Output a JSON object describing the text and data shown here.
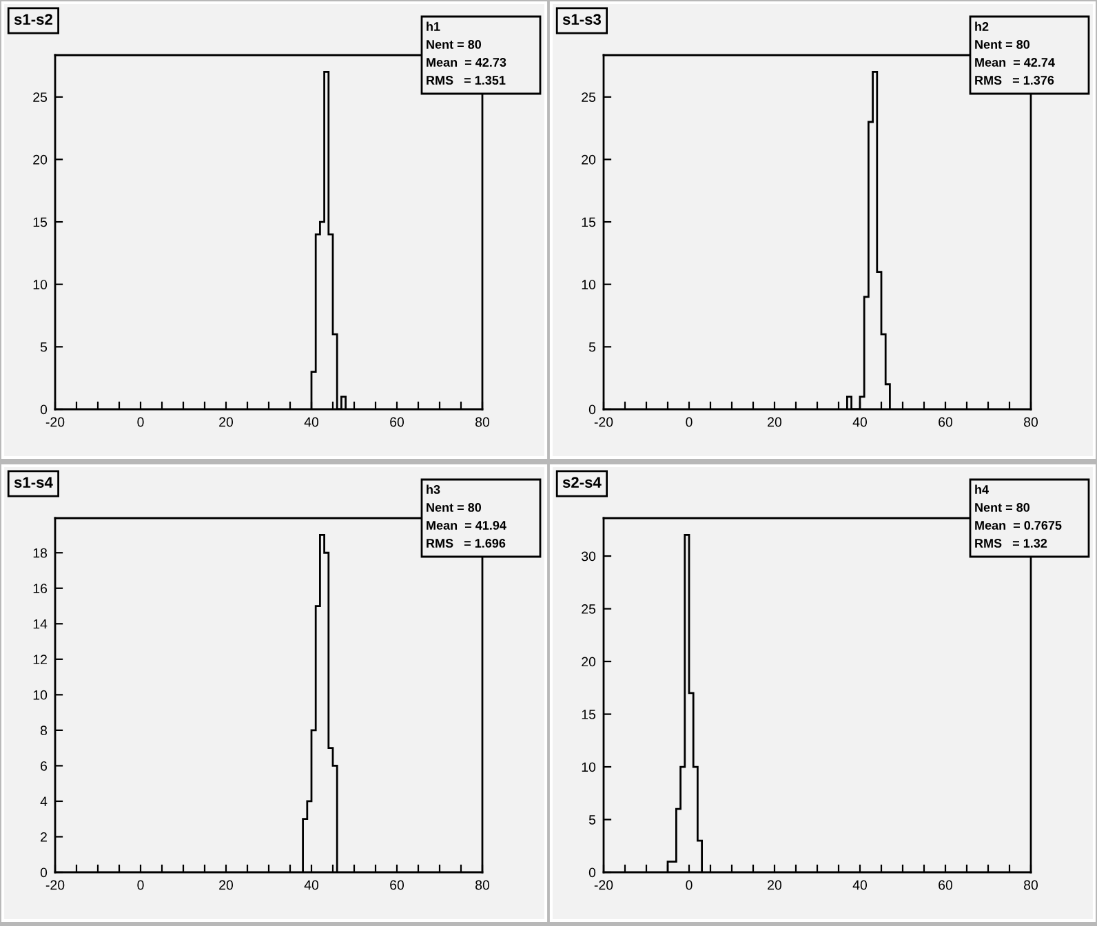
{
  "chart_data": [
    {
      "type": "histogram",
      "title": "s1-s2",
      "bins": [
        40,
        41,
        42,
        43,
        44,
        45,
        46,
        47,
        48
      ],
      "values": [
        3,
        14,
        15,
        27,
        14,
        6,
        0,
        1
      ],
      "color": "#000000",
      "xlim": [
        -20,
        80
      ],
      "ylim": [
        0,
        28.35
      ],
      "xticks": [
        -20,
        {
          "value": -15,
          "label": null
        },
        {
          "value": -10,
          "label": null
        },
        {
          "value": -5,
          "label": null
        },
        0,
        {
          "value": 5,
          "label": null
        },
        {
          "value": 10,
          "label": null
        },
        {
          "value": 15,
          "label": null
        },
        20,
        {
          "value": 25,
          "label": null
        },
        {
          "value": 30,
          "label": null
        },
        {
          "value": 35,
          "label": null
        },
        40,
        {
          "value": 45,
          "label": null
        },
        {
          "value": 50,
          "label": null
        },
        {
          "value": 55,
          "label": null
        },
        60,
        {
          "value": 65,
          "label": null
        },
        {
          "value": 70,
          "label": null
        },
        {
          "value": 75,
          "label": null
        },
        80
      ],
      "yticks": [
        0,
        5,
        10,
        15,
        20,
        25
      ],
      "grid": false,
      "legend": false,
      "annotations": [
        "h1",
        "Nent = 80",
        "Mean  = 42.73",
        "RMS   = 1.351"
      ]
    },
    {
      "type": "histogram",
      "title": "s1-s3",
      "bins": [
        37,
        38,
        39,
        40,
        41,
        42,
        43,
        44,
        45,
        46,
        47
      ],
      "values": [
        1,
        0,
        0,
        1,
        9,
        23,
        27,
        11,
        6,
        2
      ],
      "color": "#000000",
      "xlim": [
        -20,
        80
      ],
      "ylim": [
        0,
        28.35
      ],
      "xticks": [
        -20,
        {
          "value": -15,
          "label": null
        },
        {
          "value": -10,
          "label": null
        },
        {
          "value": -5,
          "label": null
        },
        0,
        {
          "value": 5,
          "label": null
        },
        {
          "value": 10,
          "label": null
        },
        {
          "value": 15,
          "label": null
        },
        20,
        {
          "value": 25,
          "label": null
        },
        {
          "value": 30,
          "label": null
        },
        {
          "value": 35,
          "label": null
        },
        40,
        {
          "value": 45,
          "label": null
        },
        {
          "value": 50,
          "label": null
        },
        {
          "value": 55,
          "label": null
        },
        60,
        {
          "value": 65,
          "label": null
        },
        {
          "value": 70,
          "label": null
        },
        {
          "value": 75,
          "label": null
        },
        80
      ],
      "yticks": [
        0,
        5,
        10,
        15,
        20,
        25
      ],
      "grid": false,
      "legend": false,
      "annotations": [
        "h2",
        "Nent = 80",
        "Mean  = 42.74",
        "RMS   = 1.376"
      ]
    },
    {
      "type": "histogram",
      "title": "s1-s4",
      "bins": [
        38,
        39,
        40,
        41,
        42,
        43,
        44,
        45,
        46
      ],
      "values": [
        3,
        4,
        8,
        15,
        19,
        18,
        7,
        6
      ],
      "color": "#000000",
      "xlim": [
        -20,
        80
      ],
      "ylim": [
        0,
        19.95
      ],
      "xticks": [
        -20,
        {
          "value": -15,
          "label": null
        },
        {
          "value": -10,
          "label": null
        },
        {
          "value": -5,
          "label": null
        },
        0,
        {
          "value": 5,
          "label": null
        },
        {
          "value": 10,
          "label": null
        },
        {
          "value": 15,
          "label": null
        },
        20,
        {
          "value": 25,
          "label": null
        },
        {
          "value": 30,
          "label": null
        },
        {
          "value": 35,
          "label": null
        },
        40,
        {
          "value": 45,
          "label": null
        },
        {
          "value": 50,
          "label": null
        },
        {
          "value": 55,
          "label": null
        },
        60,
        {
          "value": 65,
          "label": null
        },
        {
          "value": 70,
          "label": null
        },
        {
          "value": 75,
          "label": null
        },
        80
      ],
      "yticks": [
        0,
        2,
        4,
        6,
        8,
        10,
        12,
        14,
        16,
        18
      ],
      "grid": false,
      "legend": false,
      "annotations": [
        "h3",
        "Nent = 80",
        "Mean  = 41.94",
        "RMS   = 1.696"
      ]
    },
    {
      "type": "histogram",
      "title": "s2-s4",
      "bins": [
        -5,
        -4,
        -3,
        -2,
        -1,
        0,
        1,
        2,
        3
      ],
      "values": [
        1,
        1,
        6,
        10,
        32,
        17,
        10,
        3
      ],
      "color": "#000000",
      "xlim": [
        -20,
        80
      ],
      "ylim": [
        0,
        33.6
      ],
      "xticks": [
        -20,
        {
          "value": -15,
          "label": null
        },
        {
          "value": -10,
          "label": null
        },
        {
          "value": -5,
          "label": null
        },
        0,
        {
          "value": 5,
          "label": null
        },
        {
          "value": 10,
          "label": null
        },
        {
          "value": 15,
          "label": null
        },
        20,
        {
          "value": 25,
          "label": null
        },
        {
          "value": 30,
          "label": null
        },
        {
          "value": 35,
          "label": null
        },
        40,
        {
          "value": 45,
          "label": null
        },
        {
          "value": 50,
          "label": null
        },
        {
          "value": 55,
          "label": null
        },
        60,
        {
          "value": 65,
          "label": null
        },
        {
          "value": 70,
          "label": null
        },
        {
          "value": 75,
          "label": null
        },
        80
      ],
      "yticks": [
        0,
        5,
        10,
        15,
        20,
        25,
        30
      ],
      "grid": false,
      "legend": false,
      "annotations": [
        "h4",
        "Nent = 80",
        "Mean  = 0.7675",
        "RMS   = 1.32"
      ]
    }
  ]
}
